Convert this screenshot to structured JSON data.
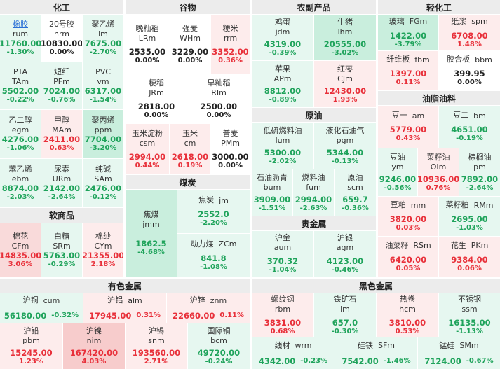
{
  "sections": {
    "chem": "化工",
    "grain": "谷物",
    "agri": "农副产品",
    "light": "轻化工",
    "soft": "软商品",
    "coal": "煤炭",
    "oilfat": "油脂油料",
    "crude": "原油",
    "precious": "贵金属",
    "nonferrous": "有色金属",
    "ferrous": "黑色金属"
  },
  "chem": [
    {
      "name": "橡胶",
      "code": "rum",
      "price": "11760.00",
      "pct": "-1.30%"
    },
    {
      "name": "20号胶",
      "code": "nrm",
      "price": "10830.00",
      "pct": "0.00%"
    },
    {
      "name": "聚乙烯",
      "code": "lm",
      "price": "7675.00",
      "pct": "-2.70%"
    },
    {
      "name": "PTA",
      "code": "TAm",
      "price": "5502.00",
      "pct": "-0.22%"
    },
    {
      "name": "短纤",
      "code": "PFm",
      "price": "7024.00",
      "pct": "-0.76%"
    },
    {
      "name": "PVC",
      "code": "vm",
      "price": "6317.00",
      "pct": "-1.54%"
    },
    {
      "name": "乙二醇",
      "code": "egm",
      "price": "4276.00",
      "pct": "-1.06%"
    },
    {
      "name": "甲醇",
      "code": "MAm",
      "price": "2411.00",
      "pct": "0.63%"
    },
    {
      "name": "聚丙烯",
      "code": "ppm",
      "price": "7704.00",
      "pct": "-3.20%"
    },
    {
      "name": "苯乙烯",
      "code": "ebm",
      "price": "8874.00",
      "pct": "-2.03%"
    },
    {
      "name": "尿素",
      "code": "URm",
      "price": "2142.00",
      "pct": "-2.64%"
    },
    {
      "name": "纯碱",
      "code": "SAm",
      "price": "2476.00",
      "pct": "-0.12%"
    }
  ],
  "soft": [
    {
      "name": "棉花",
      "code": "CFm",
      "price": "14835.00",
      "pct": "3.06%"
    },
    {
      "name": "白糖",
      "code": "SRm",
      "price": "5763.00",
      "pct": "-0.29%"
    },
    {
      "name": "棉纱",
      "code": "CYm",
      "price": "21355.00",
      "pct": "2.18%"
    }
  ],
  "grain": [
    {
      "name": "晚籼稻",
      "code": "LRm",
      "price": "2535.00",
      "pct": "0.00%"
    },
    {
      "name": "强麦",
      "code": "WHm",
      "price": "3229.00",
      "pct": "0.00%"
    },
    {
      "name": "粳米",
      "code": "rrm",
      "price": "3352.00",
      "pct": "0.36%"
    },
    {
      "name": "粳稻",
      "code": "JRm",
      "price": "2818.00",
      "pct": "0.00%"
    },
    {
      "name": "早籼稻",
      "code": "RIm",
      "price": "2500.00",
      "pct": "0.00%"
    },
    {
      "name": "玉米淀粉",
      "code": "csm",
      "price": "2994.00",
      "pct": "0.44%"
    },
    {
      "name": "玉米",
      "code": "cm",
      "price": "2618.00",
      "pct": "0.19%"
    },
    {
      "name": "普麦",
      "code": "PMm",
      "price": "3000.00",
      "pct": "0.00%"
    }
  ],
  "coal": [
    {
      "name": "焦煤",
      "code": "jmm",
      "price": "1862.5",
      "pct": "-4.68%"
    },
    {
      "name": "焦炭",
      "code": "jm",
      "price": "2552.0",
      "pct": "-2.20%"
    },
    {
      "name": "动力煤",
      "code": "ZCm",
      "price": "841.8",
      "pct": "-1.08%"
    }
  ],
  "agri": [
    {
      "name": "鸡蛋",
      "code": "jdm",
      "price": "4319.00",
      "pct": "-0.39%"
    },
    {
      "name": "生猪",
      "code": "lhm",
      "price": "20555.00",
      "pct": "-3.02%"
    },
    {
      "name": "苹果",
      "code": "APm",
      "price": "8812.00",
      "pct": "-0.89%"
    },
    {
      "name": "红枣",
      "code": "CJm",
      "price": "12430.00",
      "pct": "1.93%"
    }
  ],
  "crude": [
    {
      "name": "低硫燃料油",
      "code": "lum",
      "price": "5300.00",
      "pct": "-2.02%"
    },
    {
      "name": "液化石油气",
      "code": "pgm",
      "price": "5344.00",
      "pct": "-0.13%"
    },
    {
      "name": "石油沥青",
      "code": "bum",
      "price": "3909.00",
      "pct": "-1.51%"
    },
    {
      "name": "燃料油",
      "code": "fum",
      "price": "2994.00",
      "pct": "-2.63%"
    },
    {
      "name": "原油",
      "code": "scm",
      "price": "659.7",
      "pct": "-0.36%"
    }
  ],
  "precious": [
    {
      "name": "沪金",
      "code": "aum",
      "price": "370.32",
      "pct": "-1.04%"
    },
    {
      "name": "沪银",
      "code": "agm",
      "price": "4123.00",
      "pct": "-0.46%"
    }
  ],
  "light": [
    {
      "name": "玻璃",
      "code": "FGm",
      "price": "1422.00",
      "pct": "-3.79%"
    },
    {
      "name": "纸浆",
      "code": "spm",
      "price": "6708.00",
      "pct": "1.48%"
    },
    {
      "name": "纤维板",
      "code": "fbm",
      "price": "1397.00",
      "pct": "0.11%"
    },
    {
      "name": "胶合板",
      "code": "bbm",
      "price": "399.95",
      "pct": "0.00%"
    }
  ],
  "oilfat": [
    {
      "name": "豆一",
      "code": "am",
      "price": "5779.00",
      "pct": "0.43%"
    },
    {
      "name": "豆二",
      "code": "bm",
      "price": "4651.00",
      "pct": "-0.19%"
    },
    {
      "name": "豆油",
      "code": "ym",
      "price": "9246.00",
      "pct": "-0.56%"
    },
    {
      "name": "菜籽油",
      "code": "OIm",
      "price": "10936.00",
      "pct": "0.76%"
    },
    {
      "name": "棕榈油",
      "code": "pm",
      "price": "7892.00",
      "pct": "-2.64%"
    },
    {
      "name": "豆粕",
      "code": "mm",
      "price": "3820.00",
      "pct": "0.03%"
    },
    {
      "name": "菜籽粕",
      "code": "RMm",
      "price": "2695.00",
      "pct": "-1.03%"
    },
    {
      "name": "油菜籽",
      "code": "RSm",
      "price": "6420.00",
      "pct": "0.05%"
    },
    {
      "name": "花生",
      "code": "PKm",
      "price": "9384.00",
      "pct": "0.06%"
    }
  ],
  "nonferrous": [
    {
      "name": "沪铜",
      "code": "cum",
      "price": "56180.00",
      "pct": "-0.32%"
    },
    {
      "name": "沪铝",
      "code": "alm",
      "price": "17945.00",
      "pct": "0.31%"
    },
    {
      "name": "沪锌",
      "code": "znm",
      "price": "22660.00",
      "pct": "0.11%"
    },
    {
      "name": "沪铅",
      "code": "pbm",
      "price": "15245.00",
      "pct": "1.23%"
    },
    {
      "name": "沪镍",
      "code": "nim",
      "price": "167420.00",
      "pct": "4.03%"
    },
    {
      "name": "沪锡",
      "code": "snm",
      "price": "193560.00",
      "pct": "2.71%"
    },
    {
      "name": "国际铜",
      "code": "bcm",
      "price": "49720.00",
      "pct": "-0.24%"
    }
  ],
  "ferrous": [
    {
      "name": "螺纹钢",
      "code": "rbm",
      "price": "3831.00",
      "pct": "0.68%"
    },
    {
      "name": "铁矿石",
      "code": "im",
      "price": "657.0",
      "pct": "-0.30%"
    },
    {
      "name": "热卷",
      "code": "hcm",
      "price": "3810.00",
      "pct": "0.53%"
    },
    {
      "name": "不锈钢",
      "code": "ssm",
      "price": "16135.00",
      "pct": "-1.13%"
    },
    {
      "name": "线材",
      "code": "wrm",
      "price": "4342.00",
      "pct": "-0.23%"
    },
    {
      "name": "硅铁",
      "code": "SFm",
      "price": "7542.00",
      "pct": "-1.46%"
    },
    {
      "name": "锰硅",
      "code": "SMm",
      "price": "7124.00",
      "pct": "-0.67%"
    }
  ]
}
